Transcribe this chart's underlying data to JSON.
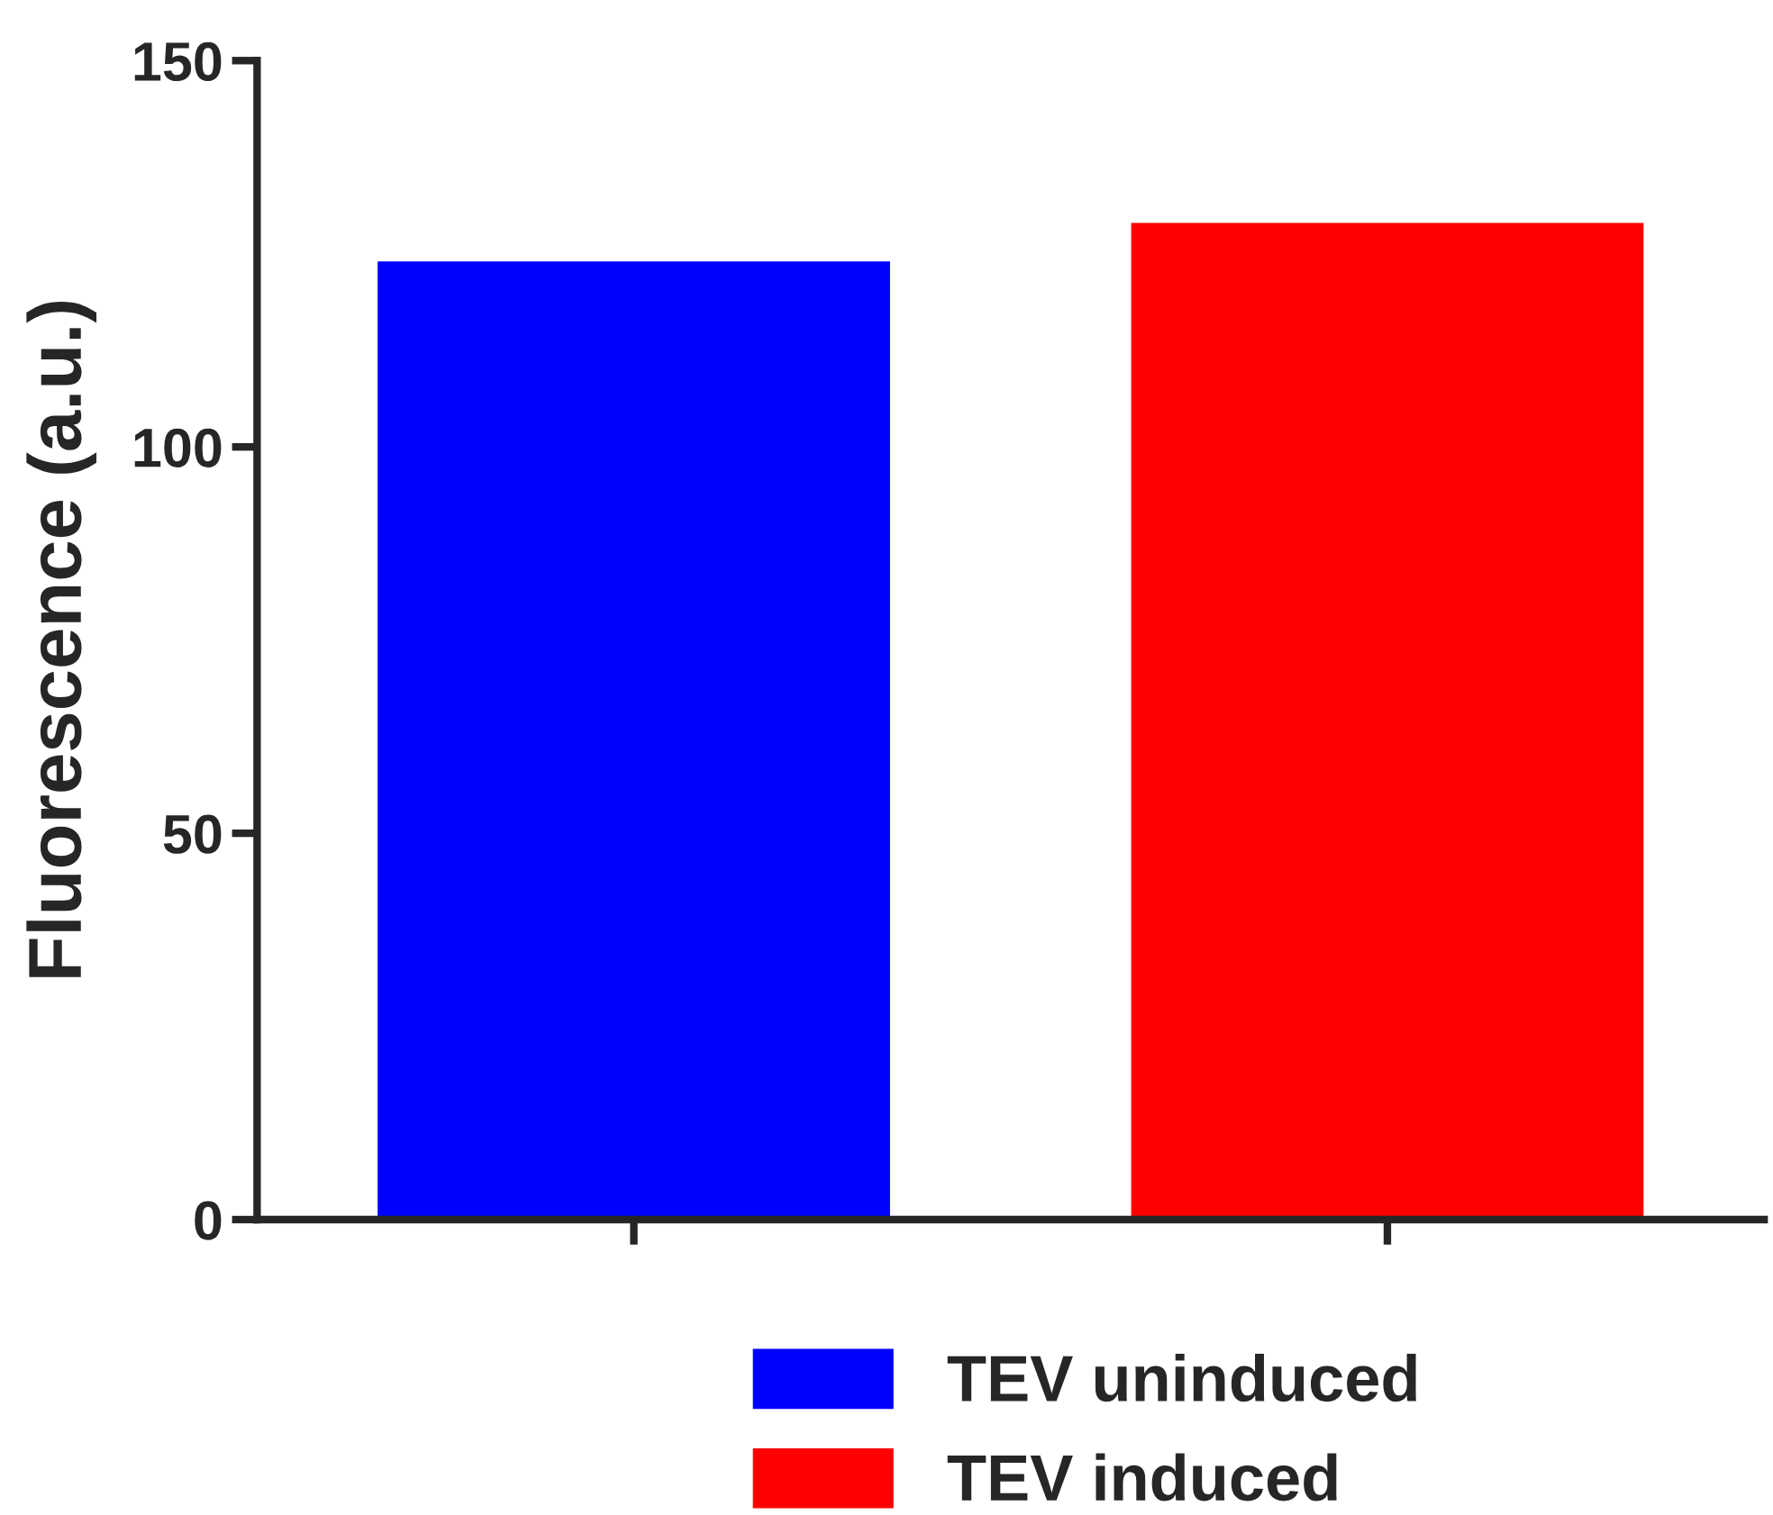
{
  "chart_data": {
    "type": "bar",
    "ylabel": "Fluorescence (a.u.)",
    "categories": [
      null,
      null
    ],
    "series": [
      {
        "name": "TEV uninduced",
        "color": "#0000ff",
        "values": [
          124,
          null
        ]
      },
      {
        "name": "TEV induced",
        "color": "#ff0000",
        "values": [
          null,
          129
        ]
      }
    ],
    "ylim": [
      0,
      150
    ],
    "yticks": [
      0,
      50,
      100,
      150
    ],
    "grid": false,
    "legend": "bottom"
  }
}
